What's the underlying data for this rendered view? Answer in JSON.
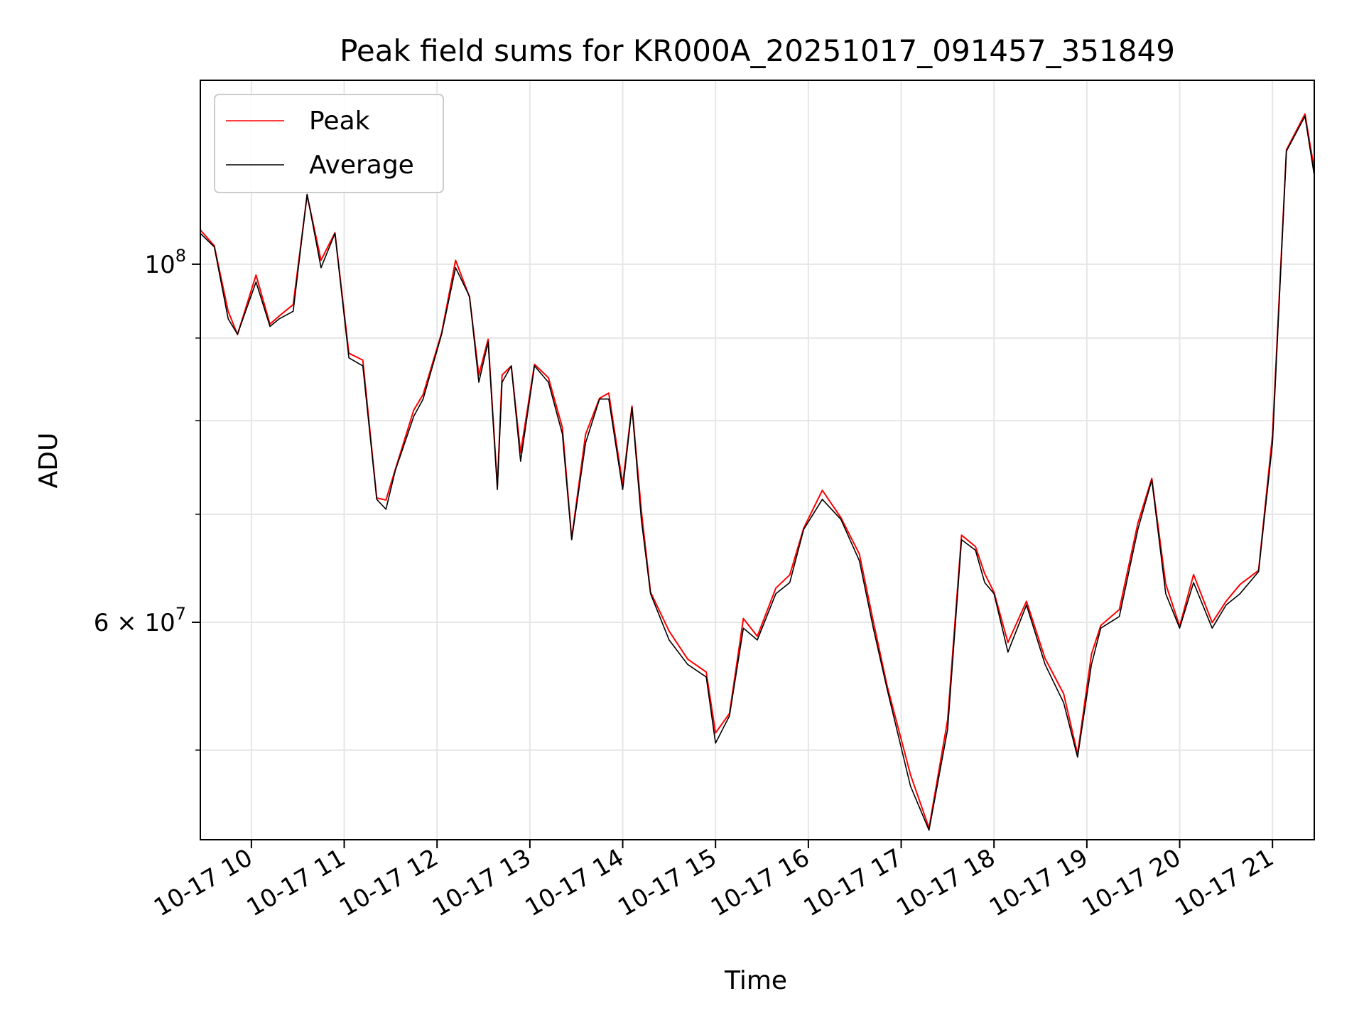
{
  "chart_data": {
    "type": "line",
    "title": "Peak field sums for KR000A_20251017_091457_351849",
    "xlabel": "Time",
    "ylabel": "ADU",
    "yscale": "log",
    "xlim_hours": [
      9.45,
      21.45
    ],
    "ylim": [
      44000000,
      130000000
    ],
    "grid": true,
    "legend_position": "upper left",
    "x_tick_labels": [
      "10-17 10",
      "10-17 11",
      "10-17 12",
      "10-17 13",
      "10-17 14",
      "10-17 15",
      "10-17 16",
      "10-17 17",
      "10-17 18",
      "10-17 19",
      "10-17 20",
      "10-17 21"
    ],
    "x_tick_hours": [
      10,
      11,
      12,
      13,
      14,
      15,
      16,
      17,
      18,
      19,
      20,
      21
    ],
    "y_major_ticks": [
      {
        "value": 100000000,
        "base": "10",
        "exp": "8"
      },
      {
        "value": 60000000,
        "mant": "6",
        "base": "10",
        "exp": "7"
      }
    ],
    "y_minor_ticks": [
      50000000,
      70000000,
      80000000,
      90000000
    ],
    "x_hours": [
      9.45,
      9.6,
      9.75,
      9.85,
      10.05,
      10.2,
      10.3,
      10.45,
      10.6,
      10.75,
      10.9,
      11.05,
      11.2,
      11.35,
      11.45,
      11.55,
      11.75,
      11.85,
      12.05,
      12.2,
      12.35,
      12.45,
      12.55,
      12.65,
      12.7,
      12.8,
      12.9,
      13.05,
      13.2,
      13.35,
      13.45,
      13.6,
      13.75,
      13.85,
      14.0,
      14.1,
      14.2,
      14.3,
      14.5,
      14.7,
      14.9,
      15.0,
      15.15,
      15.3,
      15.45,
      15.65,
      15.8,
      15.95,
      16.15,
      16.35,
      16.55,
      16.7,
      16.85,
      17.1,
      17.3,
      17.5,
      17.65,
      17.8,
      17.9,
      18.0,
      18.15,
      18.35,
      18.55,
      18.75,
      18.9,
      19.05,
      19.15,
      19.35,
      19.55,
      19.7,
      19.85,
      20.0,
      20.15,
      20.35,
      20.5,
      20.65,
      20.85,
      21.0,
      21.15,
      21.35,
      21.45
    ],
    "series": [
      {
        "name": "Peak",
        "color": "#ff0000",
        "values": [
          105000000,
          103000000,
          93000000,
          91000000,
          98000000,
          92000000,
          93000000,
          94000000,
          111000000,
          100000000,
          105000000,
          88000000,
          87000000,
          72000000,
          71000000,
          75000000,
          81000000,
          83000000,
          91000000,
          100000000,
          96000000,
          85000000,
          90000000,
          73000000,
          85000000,
          87000000,
          76000000,
          87000000,
          85000000,
          79000000,
          68000000,
          78000000,
          83000000,
          83000000,
          73000000,
          82000000,
          70000000,
          63000000,
          59000000,
          57000000,
          56000000,
          51000000,
          53000000,
          60000000,
          59000000,
          63000000,
          64000000,
          69000000,
          72000000,
          70000000,
          66000000,
          60000000,
          55000000,
          48000000,
          45000000,
          52000000,
          68000000,
          67000000,
          64000000,
          63000000,
          58000000,
          62000000,
          57000000,
          54000000,
          50000000,
          57000000,
          60000000,
          61000000,
          69000000,
          74000000,
          63000000,
          60000000,
          64000000,
          60000000,
          62000000,
          63000000,
          65000000,
          78000000,
          118000000,
          124000000,
          114000000
        ]
      },
      {
        "name": "Average",
        "color": "#000000",
        "values": [
          104500000,
          102500000,
          92500000,
          90500000,
          97500000,
          91500000,
          92500000,
          93500000,
          110500000,
          99500000,
          104500000,
          87500000,
          86500000,
          71500000,
          70500000,
          74500000,
          80500000,
          82500000,
          90500000,
          99500000,
          95500000,
          84500000,
          89500000,
          72500000,
          84500000,
          86500000,
          75500000,
          86500000,
          84500000,
          78500000,
          67500000,
          77500000,
          82500000,
          82500000,
          72500000,
          81500000,
          69500000,
          62500000,
          58500000,
          56500000,
          55500000,
          50500000,
          52500000,
          59500000,
          58500000,
          62500000,
          63500000,
          68500000,
          71500000,
          69500000,
          65500000,
          59500000,
          54500000,
          47500000,
          44600000,
          51500000,
          67500000,
          66500000,
          63500000,
          62500000,
          57500000,
          61500000,
          56500000,
          53500000,
          49500000,
          56500000,
          59500000,
          60500000,
          68500000,
          73500000,
          62500000,
          59500000,
          63500000,
          59500000,
          61500000,
          62500000,
          64500000,
          77500000,
          117500000,
          123500000,
          113500000
        ]
      }
    ]
  }
}
